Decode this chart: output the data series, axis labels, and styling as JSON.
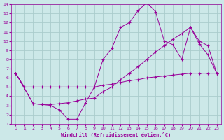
{
  "xlabel": "Windchill (Refroidissement éolien,°C)",
  "bg_color": "#cce8e8",
  "line_color": "#990099",
  "grid_color": "#aacccc",
  "xlim": [
    -0.5,
    23.5
  ],
  "ylim": [
    1,
    14
  ],
  "xticks": [
    0,
    1,
    2,
    3,
    4,
    5,
    6,
    7,
    8,
    9,
    10,
    11,
    12,
    13,
    14,
    15,
    16,
    17,
    18,
    19,
    20,
    21,
    22,
    23
  ],
  "yticks": [
    1,
    2,
    3,
    4,
    5,
    6,
    7,
    8,
    9,
    10,
    11,
    12,
    13,
    14
  ],
  "line1_x": [
    0,
    1,
    2,
    3,
    4,
    5,
    6,
    7,
    8,
    9,
    10,
    11,
    12,
    13,
    14,
    15,
    16,
    17,
    18,
    19,
    20,
    21,
    22,
    23
  ],
  "line1_y": [
    6.5,
    5.0,
    5.0,
    5.0,
    5.0,
    5.0,
    5.0,
    5.0,
    5.0,
    5.0,
    5.2,
    5.3,
    5.5,
    5.7,
    5.8,
    6.0,
    6.1,
    6.2,
    6.3,
    6.4,
    6.5,
    6.5,
    6.5,
    6.5
  ],
  "line2_x": [
    0,
    2,
    3,
    4,
    5,
    6,
    7,
    8,
    9,
    10,
    11,
    12,
    13,
    14,
    15,
    16,
    17,
    18,
    19,
    20,
    21,
    22,
    23
  ],
  "line2_y": [
    6.5,
    3.2,
    3.1,
    3.0,
    2.5,
    1.5,
    1.5,
    3.3,
    5.0,
    8.0,
    9.2,
    11.5,
    12.0,
    13.3,
    14.2,
    13.2,
    10.0,
    9.6,
    8.0,
    11.5,
    9.7,
    8.5,
    6.5
  ],
  "line3_x": [
    0,
    2,
    3,
    4,
    5,
    6,
    7,
    8,
    9,
    10,
    11,
    12,
    13,
    14,
    15,
    16,
    17,
    18,
    19,
    20,
    21,
    22,
    23
  ],
  "line3_y": [
    6.5,
    3.2,
    3.1,
    3.1,
    3.2,
    3.3,
    3.5,
    3.7,
    3.8,
    4.5,
    5.0,
    5.8,
    6.5,
    7.2,
    8.0,
    8.8,
    9.5,
    10.2,
    10.8,
    11.5,
    10.0,
    9.5,
    6.5
  ]
}
